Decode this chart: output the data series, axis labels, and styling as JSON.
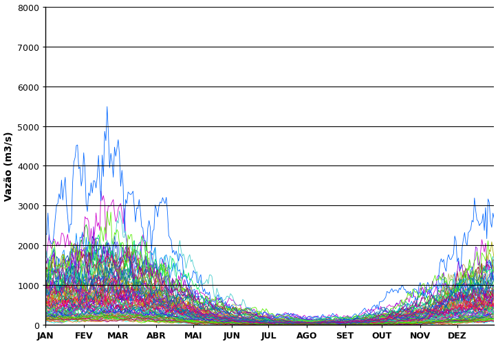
{
  "ylabel": "Vazão (m3/s)",
  "months": [
    "JAN",
    "FEV",
    "MAR",
    "ABR",
    "MAI",
    "JUN",
    "JUL",
    "AGO",
    "SET",
    "OUT",
    "NOV",
    "DEZ"
  ],
  "ylim": [
    0,
    8000
  ],
  "yticks": [
    0,
    1000,
    2000,
    3000,
    4000,
    5000,
    6000,
    7000,
    8000
  ],
  "n_series": 90,
  "days_per_month": [
    31,
    28,
    31,
    30,
    31,
    30,
    31,
    31,
    30,
    31,
    30,
    31
  ],
  "background_color": "#ffffff",
  "grid_color": "#000000",
  "line_width": 0.6
}
